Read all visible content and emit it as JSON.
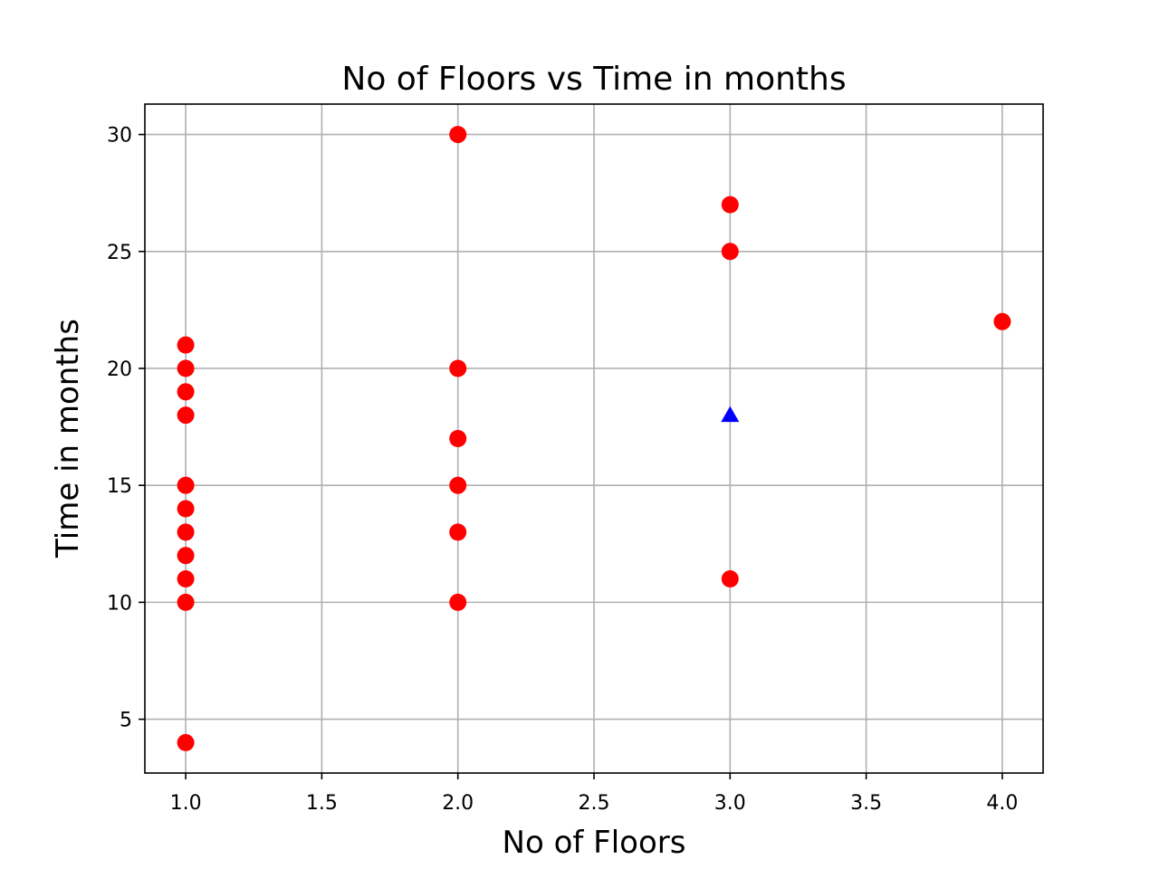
{
  "chart_data": {
    "type": "scatter",
    "title": "No of Floors vs Time in months",
    "xlabel": "No of Floors",
    "ylabel": "Time in months",
    "xlim": [
      0.85,
      4.15
    ],
    "ylim": [
      2.7,
      31.3
    ],
    "xticks": [
      1.0,
      1.5,
      2.0,
      2.5,
      3.0,
      3.5,
      4.0
    ],
    "xtick_labels": [
      "1.0",
      "1.5",
      "2.0",
      "2.5",
      "3.0",
      "3.5",
      "4.0"
    ],
    "yticks": [
      5,
      10,
      15,
      20,
      25,
      30
    ],
    "ytick_labels": [
      "5",
      "10",
      "15",
      "20",
      "25",
      "30"
    ],
    "grid": true,
    "series": [
      {
        "marker": "circle",
        "color": "#ff0000",
        "points": [
          [
            1,
            21
          ],
          [
            1,
            20
          ],
          [
            1,
            19
          ],
          [
            1,
            18
          ],
          [
            1,
            15
          ],
          [
            1,
            14
          ],
          [
            1,
            13
          ],
          [
            1,
            12
          ],
          [
            1,
            11
          ],
          [
            1,
            10
          ],
          [
            1,
            4
          ],
          [
            2,
            30
          ],
          [
            2,
            20
          ],
          [
            2,
            17
          ],
          [
            2,
            15
          ],
          [
            2,
            13
          ],
          [
            2,
            10
          ],
          [
            3,
            27
          ],
          [
            3,
            25
          ],
          [
            3,
            11
          ],
          [
            4,
            22
          ]
        ]
      },
      {
        "marker": "triangle",
        "color": "#0000ff",
        "points": [
          [
            3,
            18
          ]
        ]
      }
    ]
  }
}
